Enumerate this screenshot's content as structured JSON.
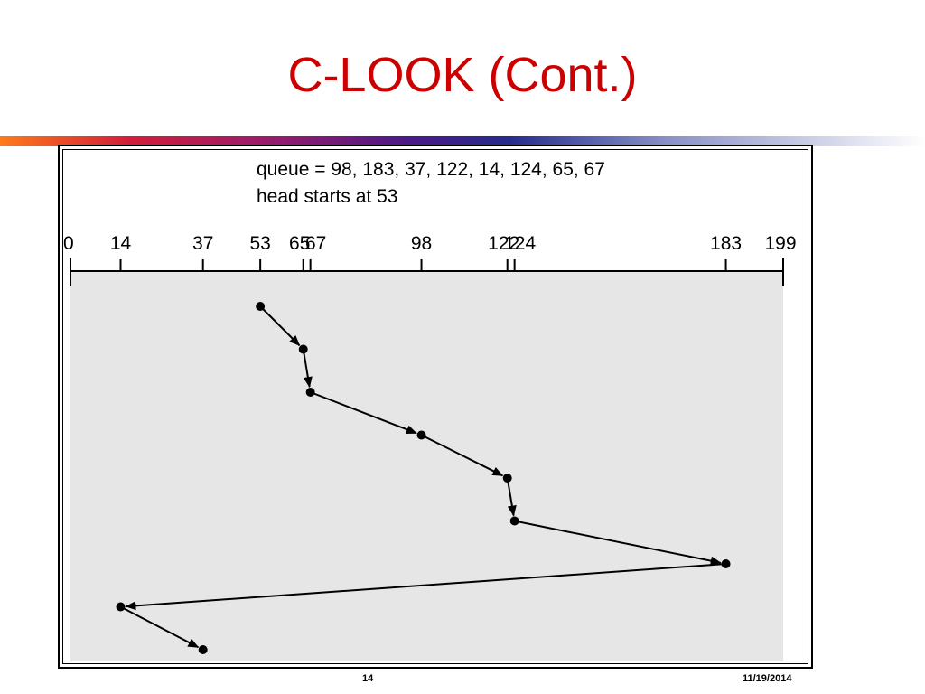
{
  "slide": {
    "title": "C-LOOK (Cont.)",
    "page_number": "14",
    "date": "11/19/2014"
  },
  "diagram": {
    "queue_line": "queue = 98, 183, 37, 122, 14, 124, 65, 67",
    "head_line": "head starts at 53",
    "cylinder_range": [
      0,
      199
    ],
    "tick_labels": [
      "0",
      "14",
      "37",
      "53",
      "65",
      "67",
      "98",
      "122",
      "124",
      "183",
      "199"
    ],
    "service_order": [
      53,
      65,
      67,
      98,
      122,
      124,
      183,
      14,
      37
    ],
    "colors": {
      "area_bg": "#e6e6e6",
      "line": "#000000",
      "title": "#cc0000"
    }
  }
}
